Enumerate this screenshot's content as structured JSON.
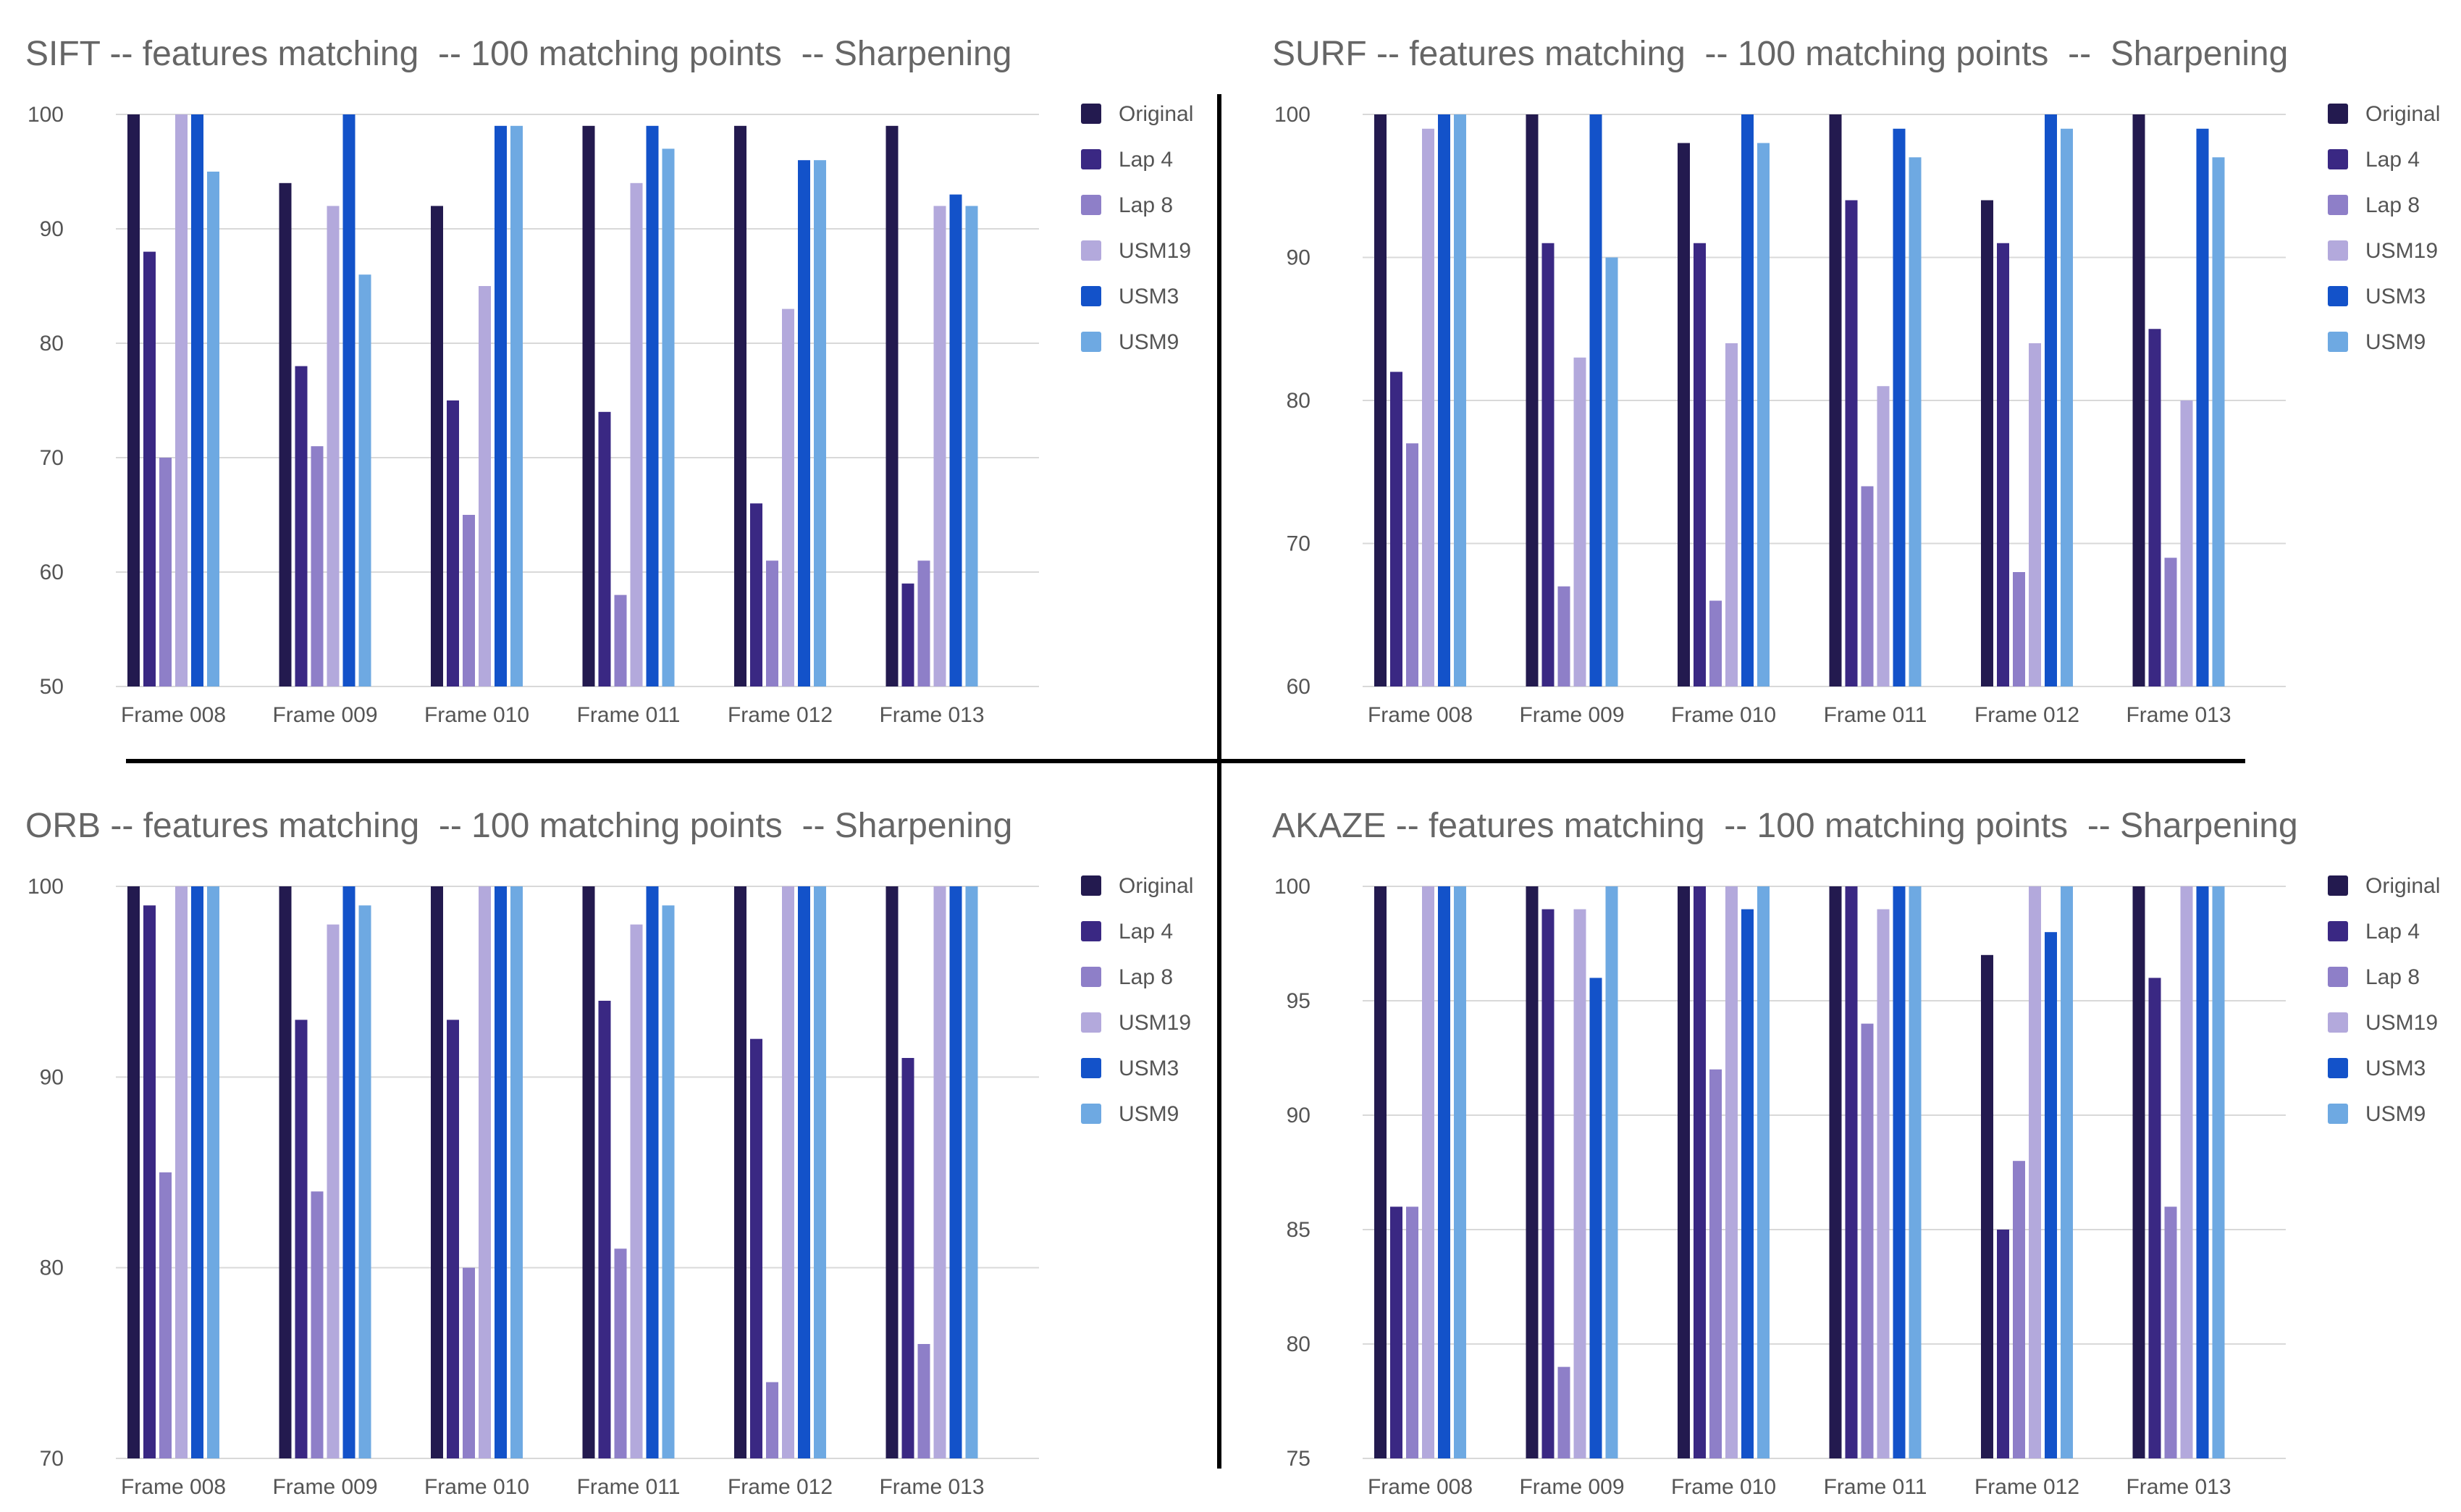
{
  "colors": {
    "series": [
      "#231a4f",
      "#3a2883",
      "#8e7fc8",
      "#b3a9dc",
      "#1352c9",
      "#6ea9e2"
    ],
    "title": "#666666",
    "tick": "#555555",
    "grid": "#d9d9d9",
    "divider": "#000000"
  },
  "chart_data": [
    {
      "type": "bar",
      "title": "SIFT -- features matching  -- 100 matching points  -- Sharpening",
      "categories": [
        "Frame 008",
        "Frame 009",
        "Frame 010",
        "Frame 011",
        "Frame 012",
        "Frame 013"
      ],
      "ylim": [
        50,
        100
      ],
      "yticks": [
        "50",
        "60",
        "70",
        "80",
        "90",
        "100"
      ],
      "series": [
        {
          "name": "Original",
          "values": [
            100,
            94,
            92,
            99,
            99,
            99
          ]
        },
        {
          "name": "Lap 4",
          "values": [
            88,
            78,
            75,
            74,
            66,
            59
          ]
        },
        {
          "name": "Lap 8",
          "values": [
            70,
            71,
            65,
            58,
            61,
            61
          ]
        },
        {
          "name": "USM19",
          "values": [
            100,
            92,
            85,
            94,
            83,
            92
          ]
        },
        {
          "name": "USM3",
          "values": [
            100,
            100,
            99,
            99,
            96,
            93
          ]
        },
        {
          "name": "USM9",
          "values": [
            95,
            86,
            99,
            97,
            96,
            92
          ]
        }
      ]
    },
    {
      "type": "bar",
      "title": "SURF -- features matching  -- 100 matching points  --  Sharpening",
      "categories": [
        "Frame 008",
        "Frame 009",
        "Frame 010",
        "Frame 011",
        "Frame 012",
        "Frame 013"
      ],
      "ylim": [
        60,
        100
      ],
      "yticks": [
        "60",
        "70",
        "80",
        "90",
        "100"
      ],
      "series": [
        {
          "name": "Original",
          "values": [
            100,
            100,
            98,
            100,
            94,
            100
          ]
        },
        {
          "name": "Lap 4",
          "values": [
            82,
            91,
            91,
            94,
            91,
            85
          ]
        },
        {
          "name": "Lap 8",
          "values": [
            77,
            67,
            66,
            74,
            68,
            69
          ]
        },
        {
          "name": "USM19",
          "values": [
            99,
            83,
            84,
            81,
            84,
            80
          ]
        },
        {
          "name": "USM3",
          "values": [
            100,
            100,
            100,
            99,
            100,
            99
          ]
        },
        {
          "name": "USM9",
          "values": [
            100,
            90,
            98,
            97,
            99,
            97
          ]
        }
      ]
    },
    {
      "type": "bar",
      "title": "ORB -- features matching  -- 100 matching points  -- Sharpening",
      "categories": [
        "Frame 008",
        "Frame 009",
        "Frame 010",
        "Frame 011",
        "Frame 012",
        "Frame 013"
      ],
      "ylim": [
        70,
        100
      ],
      "yticks": [
        "70",
        "80",
        "90",
        "100"
      ],
      "series": [
        {
          "name": "Original",
          "values": [
            100,
            100,
            100,
            100,
            100,
            100
          ]
        },
        {
          "name": "Lap 4",
          "values": [
            99,
            93,
            93,
            94,
            92,
            91
          ]
        },
        {
          "name": "Lap 8",
          "values": [
            85,
            84,
            80,
            81,
            74,
            76
          ]
        },
        {
          "name": "USM19",
          "values": [
            100,
            98,
            100,
            98,
            100,
            100
          ]
        },
        {
          "name": "USM3",
          "values": [
            100,
            100,
            100,
            100,
            100,
            100
          ]
        },
        {
          "name": "USM9",
          "values": [
            100,
            99,
            100,
            99,
            100,
            100
          ]
        }
      ]
    },
    {
      "type": "bar",
      "title": "AKAZE -- features matching  -- 100 matching points  -- Sharpening",
      "categories": [
        "Frame 008",
        "Frame 009",
        "Frame 010",
        "Frame 011",
        "Frame 012",
        "Frame 013"
      ],
      "ylim": [
        75,
        100
      ],
      "yticks": [
        "75",
        "80",
        "85",
        "90",
        "95",
        "100"
      ],
      "series": [
        {
          "name": "Original",
          "values": [
            100,
            100,
            100,
            100,
            97,
            100
          ]
        },
        {
          "name": "Lap 4",
          "values": [
            86,
            99,
            100,
            100,
            85,
            96
          ]
        },
        {
          "name": "Lap 8",
          "values": [
            86,
            79,
            92,
            94,
            88,
            86
          ]
        },
        {
          "name": "USM19",
          "values": [
            100,
            99,
            100,
            99,
            100,
            100
          ]
        },
        {
          "name": "USM3",
          "values": [
            100,
            96,
            99,
            100,
            98,
            100
          ]
        },
        {
          "name": "USM9",
          "values": [
            100,
            100,
            100,
            100,
            100,
            100
          ]
        }
      ]
    }
  ]
}
